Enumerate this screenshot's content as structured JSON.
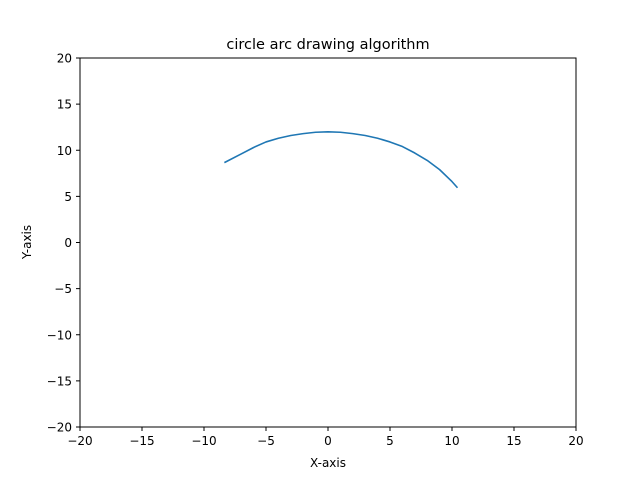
{
  "chart_data": {
    "type": "line",
    "title": "circle arc drawing algorithm",
    "xlabel": "X-axis",
    "ylabel": "Y-axis",
    "xlim": [
      -20,
      20
    ],
    "ylim": [
      -20,
      20
    ],
    "xticks": [
      -20,
      -15,
      -10,
      -5,
      0,
      5,
      10,
      15,
      20
    ],
    "yticks": [
      -20,
      -15,
      -10,
      -5,
      0,
      5,
      10,
      15,
      20
    ],
    "xtick_labels": [
      "−20",
      "−15",
      "−10",
      "−5",
      "0",
      "5",
      "10",
      "15",
      "20"
    ],
    "ytick_labels": [
      "−20",
      "−15",
      "−10",
      "−5",
      "0",
      "5",
      "10",
      "15",
      "20"
    ],
    "grid": false,
    "series": [
      {
        "color": "#1f77b4",
        "x": [
          -8.3,
          -7,
          -6,
          -5,
          -4,
          -3,
          -2,
          -1,
          0,
          1,
          2,
          3,
          4,
          5,
          6,
          7,
          8,
          9,
          10,
          10.4
        ],
        "y": [
          8.7,
          9.6,
          10.3,
          10.9,
          11.3,
          11.6,
          11.8,
          11.95,
          12.0,
          11.95,
          11.8,
          11.6,
          11.3,
          10.9,
          10.4,
          9.7,
          8.9,
          7.9,
          6.6,
          6.0
        ]
      }
    ]
  }
}
